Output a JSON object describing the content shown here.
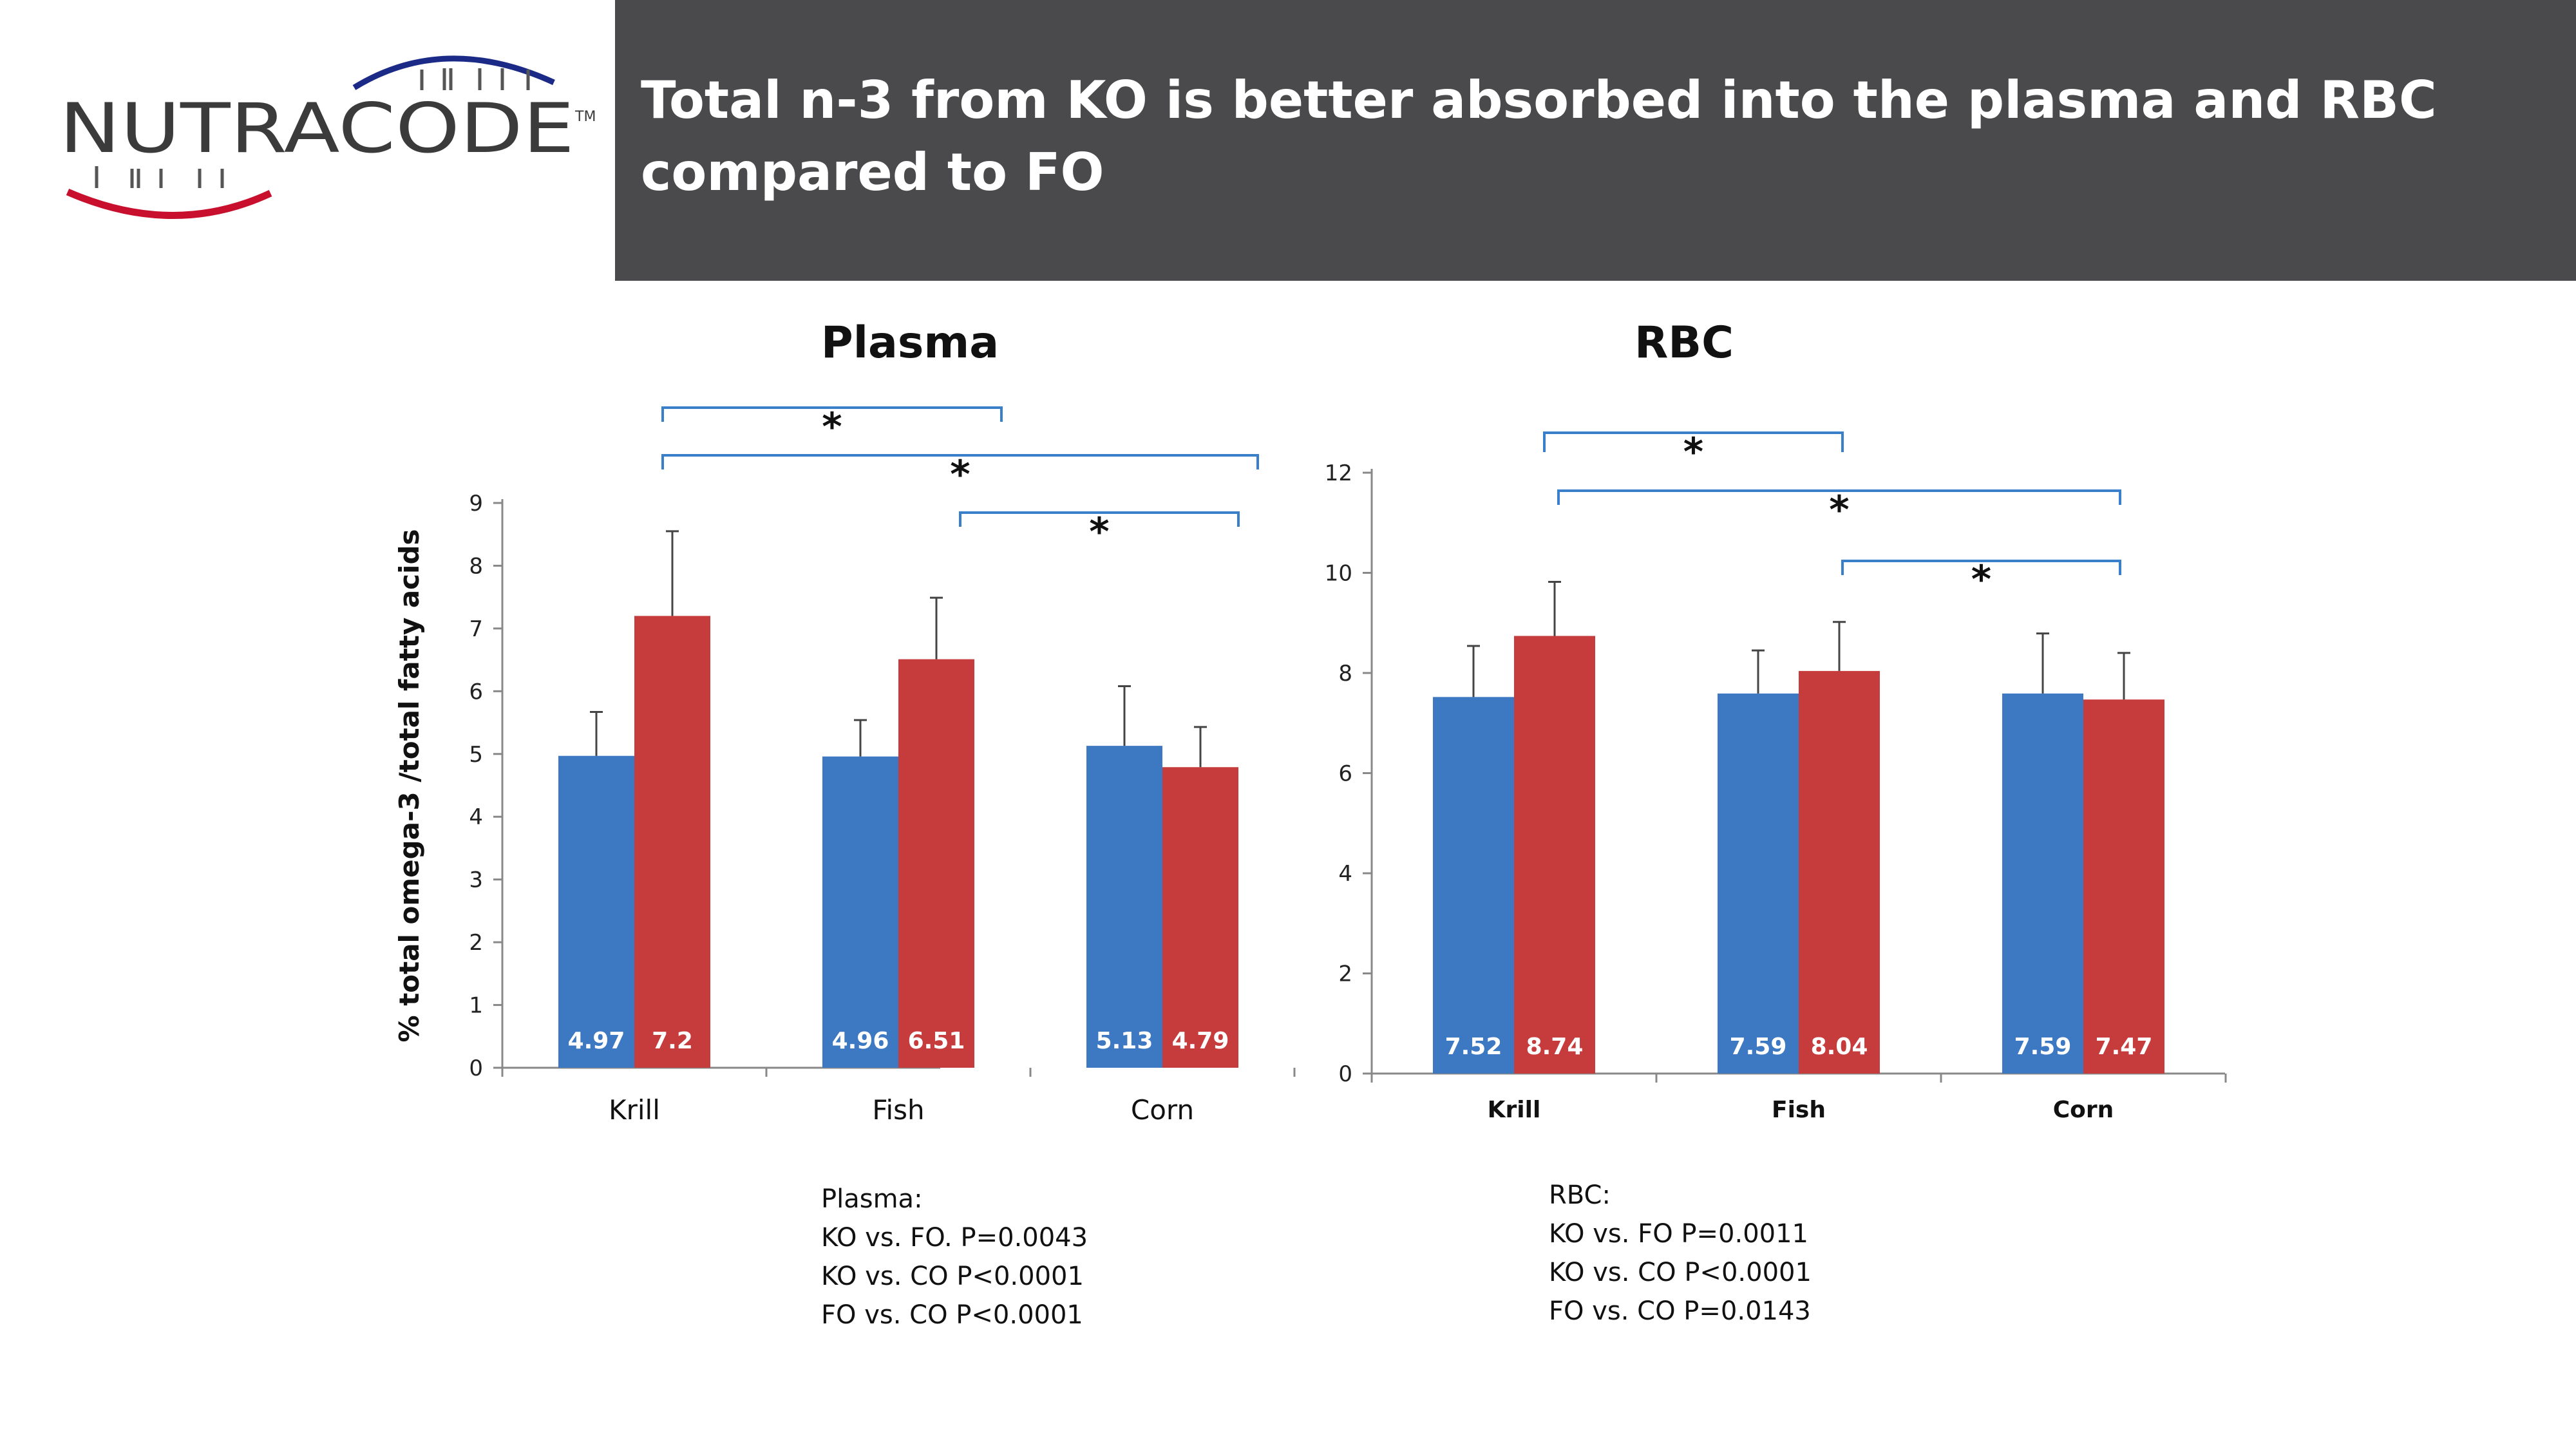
{
  "brand": {
    "name": "NUTRACODE",
    "tm": "TM"
  },
  "slide": {
    "title": "Total n-3 from KO is better absorbed into the plasma and RBC compared to FO"
  },
  "colors": {
    "series1": "#3d78c2",
    "series2": "#c63c3c",
    "bracket": "#3a7fc9",
    "title_bar": "#4a4a4c",
    "label_text": "#ffffff"
  },
  "chart_data": [
    {
      "type": "bar",
      "title": "Plasma",
      "ylabel": "% total omega-3 /total fatty acids",
      "xlabel": "",
      "categories": [
        "Krill",
        "Fish",
        "Corn"
      ],
      "ylim": [
        0,
        9
      ],
      "yticks": [
        "0",
        "1",
        "2",
        "3",
        "4",
        "5",
        "6",
        "7",
        "8",
        "9"
      ],
      "series": [
        {
          "values": [
            4.97,
            4.96,
            5.13
          ],
          "labels": [
            "4.97",
            "4.96",
            "5.13"
          ],
          "errors": [
            0.7,
            0.58,
            0.95
          ]
        },
        {
          "values": [
            7.2,
            6.51,
            4.79
          ],
          "labels": [
            "7.2",
            "6.51",
            "4.79"
          ],
          "errors": [
            1.35,
            0.98,
            0.64
          ]
        }
      ],
      "significance": [
        {
          "from": 0,
          "to": 1,
          "label": "*"
        },
        {
          "from": 0,
          "to": 2,
          "label": "*"
        },
        {
          "from": 1,
          "to": 2,
          "label": "*"
        }
      ],
      "grid": false
    },
    {
      "type": "bar",
      "title": "RBC",
      "ylabel": "",
      "xlabel": "",
      "categories": [
        "Krill",
        "Fish",
        "Corn"
      ],
      "ylim": [
        0,
        12
      ],
      "yticks": [
        "0",
        "2",
        "4",
        "6",
        "8",
        "10",
        "12"
      ],
      "series": [
        {
          "values": [
            7.52,
            7.59,
            7.59
          ],
          "labels": [
            "7.52",
            "7.59",
            "7.59"
          ],
          "errors": [
            1.02,
            0.86,
            1.2
          ]
        },
        {
          "values": [
            8.74,
            8.04,
            7.47
          ],
          "labels": [
            "8.74",
            "8.04",
            "7.47"
          ],
          "errors": [
            1.08,
            0.98,
            0.93
          ]
        }
      ],
      "significance": [
        {
          "from": 0,
          "to": 1,
          "label": "*"
        },
        {
          "from": 0,
          "to": 2,
          "label": "*"
        },
        {
          "from": 1,
          "to": 2,
          "label": "*"
        }
      ],
      "grid": false
    }
  ],
  "notes": {
    "plasma": [
      "Plasma:",
      "KO vs. FO. P=0.0043",
      "KO vs. CO P<0.0001",
      "FO vs. CO P<0.0001"
    ],
    "rbc": [
      "RBC:",
      "KO vs. FO P=0.0011",
      "KO vs. CO P<0.0001",
      "FO vs. CO P=0.0143"
    ]
  }
}
